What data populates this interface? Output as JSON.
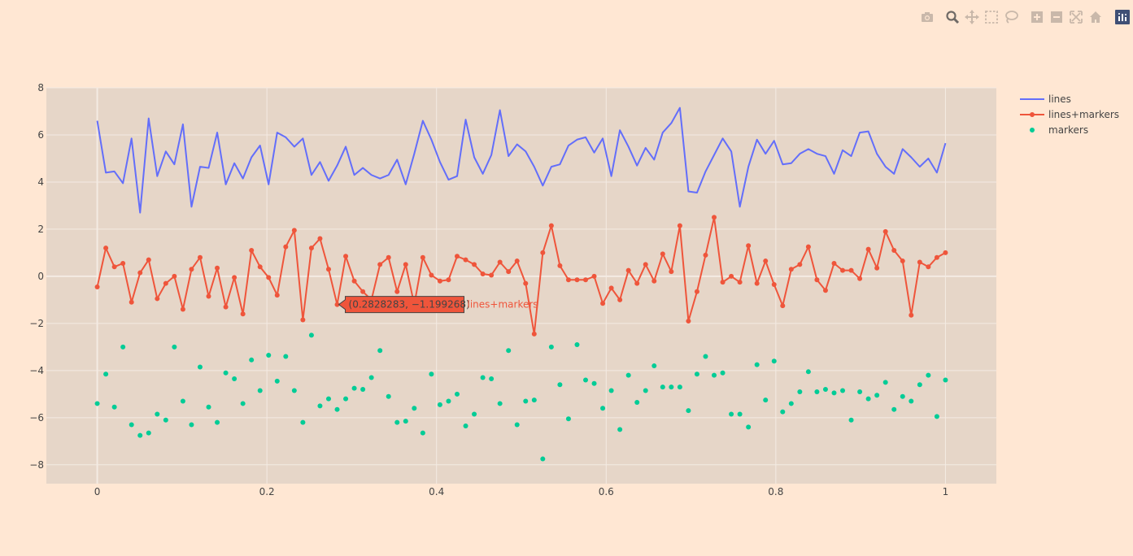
{
  "colors": {
    "paper_bg": "#ffe7d3",
    "plot_bg": "#e6d6c8",
    "grid": "#f4ebe3",
    "lines": "#636efa",
    "lines_markers": "#ef553b",
    "markers": "#00cc96",
    "modebar_icon": "#c9b8aa",
    "modebar_active": "#6f6a66",
    "plotly_logo_bg": "#3f4f75"
  },
  "modebar": [
    {
      "name": "camera-icon",
      "title": "Download plot as a png"
    },
    {
      "name": "zoom-icon",
      "title": "Zoom"
    },
    {
      "name": "pan-icon",
      "title": "Pan"
    },
    {
      "name": "box-select-icon",
      "title": "Box Select"
    },
    {
      "name": "lasso-select-icon",
      "title": "Lasso Select"
    },
    {
      "name": "zoom-in-icon",
      "title": "Zoom in"
    },
    {
      "name": "zoom-out-icon",
      "title": "Zoom out"
    },
    {
      "name": "autoscale-icon",
      "title": "Autoscale"
    },
    {
      "name": "reset-axes-icon",
      "title": "Reset axes"
    },
    {
      "name": "plotly-logo-icon",
      "title": "Produced with Plotly"
    }
  ],
  "hover": {
    "x": 0.2828283,
    "y": -1.199268,
    "text": "(0.2828283, −1.199268)",
    "trace_name": "lines+markers"
  },
  "chart_data": {
    "type": "line",
    "title": "",
    "xlabel": "",
    "ylabel": "",
    "xlim": [
      -0.06,
      1.06
    ],
    "ylim": [
      -8.8,
      8
    ],
    "grid": true,
    "legend_position": "top-right",
    "x_ticks": [
      0,
      0.2,
      0.4,
      0.6,
      0.8,
      1
    ],
    "x_tick_labels": [
      "0",
      "0.2",
      "0.4",
      "0.6",
      "0.8",
      "1"
    ],
    "y_ticks": [
      -8,
      -6,
      -4,
      -2,
      0,
      2,
      4,
      6,
      8
    ],
    "y_tick_labels": [
      "−8",
      "−6",
      "−4",
      "−2",
      "0",
      "2",
      "4",
      "6",
      "8"
    ],
    "x_start": 0,
    "x_step": 0.010101,
    "series": [
      {
        "name": "lines",
        "mode": "lines",
        "values": [
          6.6,
          4.4,
          4.45,
          3.95,
          5.85,
          2.7,
          6.7,
          4.25,
          5.3,
          4.75,
          6.45,
          2.95,
          4.65,
          4.6,
          6.1,
          3.9,
          4.8,
          4.15,
          5.05,
          5.55,
          3.9,
          6.1,
          5.9,
          5.5,
          5.85,
          4.3,
          4.85,
          4.05,
          4.7,
          5.5,
          4.3,
          4.6,
          4.3,
          4.15,
          4.3,
          4.95,
          3.9,
          5.2,
          6.6,
          5.8,
          4.85,
          4.1,
          4.25,
          6.65,
          5.05,
          4.35,
          5.15,
          7.05,
          5.1,
          5.6,
          5.3,
          4.65,
          3.85,
          4.65,
          4.75,
          5.55,
          5.8,
          5.9,
          5.25,
          5.85,
          4.25,
          6.2,
          5.5,
          4.7,
          5.45,
          4.95,
          6.1,
          6.5,
          7.15,
          3.6,
          3.55,
          4.45,
          5.15,
          5.85,
          5.3,
          2.95,
          4.65,
          5.8,
          5.2,
          5.75,
          4.75,
          4.8,
          5.2,
          5.4,
          5.2,
          5.1,
          4.35,
          5.35,
          5.1,
          6.1,
          6.15,
          5.2,
          4.65,
          4.35,
          5.4,
          5.05,
          4.65,
          5.0,
          4.4,
          5.65
        ]
      },
      {
        "name": "lines+markers",
        "mode": "lines+markers",
        "values": [
          -0.45,
          1.2,
          0.4,
          0.55,
          -1.1,
          0.15,
          0.7,
          -0.95,
          -0.3,
          0.0,
          -1.4,
          0.3,
          0.8,
          -0.85,
          0.35,
          -1.3,
          -0.05,
          -1.6,
          1.1,
          0.4,
          -0.05,
          -0.8,
          1.25,
          1.95,
          -1.85,
          1.2,
          1.6,
          0.3,
          -1.2,
          0.85,
          -0.2,
          -0.65,
          -1.0,
          0.5,
          0.8,
          -0.65,
          0.5,
          -1.2,
          0.8,
          0.05,
          -0.2,
          -0.15,
          0.85,
          0.7,
          0.5,
          0.1,
          0.05,
          0.6,
          0.2,
          0.65,
          -0.3,
          -2.45,
          1.0,
          2.15,
          0.45,
          -0.15,
          -0.15,
          -0.15,
          0.0,
          -1.15,
          -0.5,
          -1.0,
          0.25,
          -0.3,
          0.5,
          -0.2,
          0.95,
          0.2,
          2.15,
          -1.9,
          -0.65,
          0.9,
          2.5,
          -0.25,
          0.0,
          -0.25,
          1.3,
          -0.3,
          0.65,
          -0.35,
          -1.25,
          0.3,
          0.5,
          1.25,
          -0.15,
          -0.6,
          0.55,
          0.25,
          0.25,
          -0.1,
          1.15,
          0.35,
          1.9,
          1.1,
          0.65,
          -1.65,
          0.6,
          0.4,
          0.8,
          1.0
        ]
      },
      {
        "name": "markers",
        "mode": "markers",
        "values": [
          -5.4,
          -4.15,
          -5.55,
          -3.0,
          -6.3,
          -6.75,
          -6.65,
          -5.85,
          -6.1,
          -3.0,
          -5.3,
          -6.3,
          -3.85,
          -5.55,
          -6.2,
          -4.1,
          -4.35,
          -5.4,
          -3.55,
          -4.85,
          -3.35,
          -4.45,
          -3.4,
          -4.85,
          -6.2,
          -2.5,
          -5.5,
          -5.2,
          -5.65,
          -5.2,
          -4.75,
          -4.8,
          -4.3,
          -3.15,
          -5.1,
          -6.2,
          -6.15,
          -5.6,
          -6.65,
          -4.15,
          -5.45,
          -5.3,
          -5.0,
          -6.35,
          -5.85,
          -4.3,
          -4.35,
          -5.4,
          -3.15,
          -6.3,
          -5.3,
          -5.25,
          -7.75,
          -3.0,
          -4.6,
          -6.05,
          -2.9,
          -4.4,
          -4.55,
          -5.6,
          -4.85,
          -6.5,
          -4.2,
          -5.35,
          -4.85,
          -3.8,
          -4.7,
          -4.7,
          -4.7,
          -5.7,
          -4.15,
          -3.4,
          -4.2,
          -4.1,
          -5.85,
          -5.85,
          -6.4,
          -3.75,
          -5.25,
          -3.6,
          -5.75,
          -5.4,
          -4.9,
          -4.05,
          -4.9,
          -4.8,
          -4.95,
          -4.85,
          -6.1,
          -4.9,
          -5.2,
          -5.05,
          -4.5,
          -5.65,
          -5.1,
          -5.3,
          -4.6,
          -4.2,
          -5.95,
          -4.4
        ]
      }
    ]
  }
}
